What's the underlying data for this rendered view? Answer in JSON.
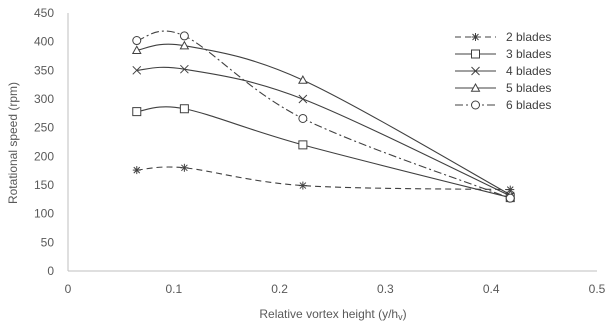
{
  "chart_data": {
    "type": "line",
    "xlabel": "Relative vortex height (y/h",
    "xlabel_sub": "v",
    "xlabel_end": ")",
    "ylabel": "Rotational speed (rpm)",
    "xlim": [
      0,
      0.5
    ],
    "ylim": [
      0,
      450
    ],
    "xticks": [
      "0",
      "0.1",
      "0.2",
      "0.3",
      "0.4",
      "0.5"
    ],
    "xtick_values": [
      0,
      0.1,
      0.2,
      0.3,
      0.4,
      0.5
    ],
    "yticks": [
      "0",
      "50",
      "100",
      "150",
      "200",
      "250",
      "300",
      "350",
      "400",
      "450"
    ],
    "ytick_values": [
      0,
      50,
      100,
      150,
      200,
      250,
      300,
      350,
      400,
      450
    ],
    "grid": false,
    "legend_position": "top-right",
    "series": [
      {
        "name": "2 blades",
        "marker": "asterisk",
        "dash": "dashed",
        "x": [
          0.065,
          0.11,
          0.222,
          0.418
        ],
        "y": [
          176,
          180,
          149,
          142
        ]
      },
      {
        "name": "3 blades",
        "marker": "square",
        "dash": "solid",
        "x": [
          0.065,
          0.11,
          0.222,
          0.418
        ],
        "y": [
          278,
          283,
          220,
          128
        ]
      },
      {
        "name": "4 blades",
        "marker": "x",
        "dash": "solid",
        "x": [
          0.065,
          0.11,
          0.222,
          0.418
        ],
        "y": [
          350,
          352,
          300,
          131
        ]
      },
      {
        "name": "5 blades",
        "marker": "triangle",
        "dash": "solid",
        "x": [
          0.065,
          0.11,
          0.222,
          0.418
        ],
        "y": [
          385,
          393,
          333,
          133
        ]
      },
      {
        "name": "6 blades",
        "marker": "circle",
        "dash": "dashdot",
        "x": [
          0.065,
          0.11,
          0.222,
          0.418
        ],
        "y": [
          402,
          410,
          266,
          127
        ]
      }
    ]
  }
}
